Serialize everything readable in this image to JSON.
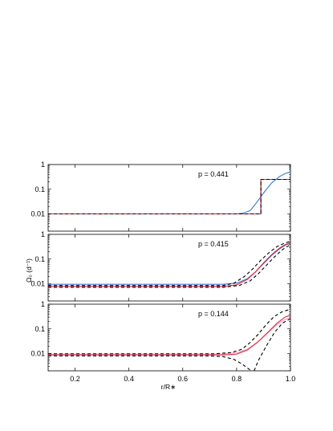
{
  "figure": {
    "xlabel": "r/R∗",
    "ylabel": "Ω₀ (d⁻¹)",
    "x_ticks": [
      "0.2",
      "0.4",
      "0.6",
      "0.8",
      "1.0"
    ],
    "y_ticks": [
      "0.01",
      "0.1",
      "1"
    ]
  },
  "colors": {
    "blue": "#3a78d6",
    "red": "#e0233a",
    "black": "#000000",
    "pink": "#e8a6cf"
  },
  "chart_data": [
    {
      "type": "line",
      "label": "p = 0.441",
      "xlim": [
        0.1,
        1.0
      ],
      "ylim": [
        0.002,
        1
      ],
      "yscale": "log",
      "series": [
        {
          "color": "blue",
          "dash": "solid",
          "points": [
            [
              0.1,
              0.01
            ],
            [
              0.8,
              0.01
            ],
            [
              0.82,
              0.0105
            ],
            [
              0.85,
              0.0135
            ],
            [
              0.87,
              0.025
            ],
            [
              0.9,
              0.07
            ],
            [
              0.93,
              0.18
            ],
            [
              0.96,
              0.33
            ],
            [
              0.98,
              0.43
            ],
            [
              1.0,
              0.5
            ]
          ]
        },
        {
          "color": "black",
          "dash": "solid",
          "points": [
            [
              0.1,
              0.01
            ],
            [
              0.89,
              0.01
            ],
            [
              0.89,
              0.25
            ],
            [
              1.0,
              0.25
            ]
          ]
        },
        {
          "color": "red",
          "dash": "solid",
          "points": [
            [
              0.1,
              0.01
            ],
            [
              0.89,
              0.01
            ],
            [
              0.89,
              0.25
            ],
            [
              1.0,
              0.25
            ]
          ]
        },
        {
          "color": "black",
          "dash": "dashed",
          "points": [
            [
              0.1,
              0.01
            ],
            [
              0.89,
              0.01
            ],
            [
              0.89,
              0.25
            ],
            [
              1.0,
              0.25
            ]
          ]
        }
      ]
    },
    {
      "type": "line",
      "label": "p = 0.415",
      "xlim": [
        0.1,
        1.0
      ],
      "ylim": [
        0.002,
        1
      ],
      "yscale": "log",
      "series": [
        {
          "color": "blue",
          "dash": "solid",
          "points": [
            [
              0.1,
              0.0095
            ],
            [
              0.75,
              0.0095
            ],
            [
              0.8,
              0.0105
            ],
            [
              0.84,
              0.016
            ],
            [
              0.87,
              0.03
            ],
            [
              0.9,
              0.065
            ],
            [
              0.93,
              0.14
            ],
            [
              0.96,
              0.26
            ],
            [
              0.98,
              0.36
            ],
            [
              1.0,
              0.44
            ]
          ]
        },
        {
          "color": "red",
          "dash": "solid",
          "points": [
            [
              0.1,
              0.0078
            ],
            [
              0.75,
              0.0078
            ],
            [
              0.8,
              0.009
            ],
            [
              0.84,
              0.015
            ],
            [
              0.87,
              0.03
            ],
            [
              0.9,
              0.07
            ],
            [
              0.93,
              0.15
            ],
            [
              0.96,
              0.28
            ],
            [
              0.98,
              0.38
            ],
            [
              1.0,
              0.46
            ]
          ]
        },
        {
          "color": "black",
          "dash": "dashed",
          "points": [
            [
              0.1,
              0.0085
            ],
            [
              0.75,
              0.0085
            ],
            [
              0.79,
              0.0105
            ],
            [
              0.83,
              0.02
            ],
            [
              0.86,
              0.04
            ],
            [
              0.89,
              0.09
            ],
            [
              0.92,
              0.18
            ],
            [
              0.95,
              0.32
            ],
            [
              0.98,
              0.45
            ],
            [
              1.0,
              0.52
            ]
          ]
        },
        {
          "color": "black",
          "dash": "dashed",
          "points": [
            [
              0.1,
              0.0072
            ],
            [
              0.75,
              0.0072
            ],
            [
              0.81,
              0.0085
            ],
            [
              0.85,
              0.013
            ],
            [
              0.88,
              0.025
            ],
            [
              0.91,
              0.055
            ],
            [
              0.94,
              0.12
            ],
            [
              0.97,
              0.24
            ],
            [
              0.99,
              0.33
            ],
            [
              1.0,
              0.38
            ]
          ]
        }
      ]
    },
    {
      "type": "line",
      "label": "p = 0.144",
      "xlim": [
        0.1,
        1.0
      ],
      "ylim": [
        0.002,
        1
      ],
      "yscale": "log",
      "series": [
        {
          "color": "pink",
          "dash": "solid",
          "points": [
            [
              0.1,
              0.0095
            ],
            [
              0.75,
              0.0095
            ],
            [
              0.8,
              0.011
            ],
            [
              0.84,
              0.015
            ],
            [
              0.88,
              0.03
            ],
            [
              0.92,
              0.075
            ],
            [
              0.95,
              0.15
            ],
            [
              0.98,
              0.24
            ],
            [
              1.0,
              0.28
            ]
          ]
        },
        {
          "color": "red",
          "dash": "solid",
          "points": [
            [
              0.1,
              0.0088
            ],
            [
              0.75,
              0.0088
            ],
            [
              0.8,
              0.0095
            ],
            [
              0.84,
              0.014
            ],
            [
              0.88,
              0.03
            ],
            [
              0.92,
              0.08
            ],
            [
              0.95,
              0.17
            ],
            [
              0.98,
              0.3
            ],
            [
              1.0,
              0.36
            ]
          ]
        },
        {
          "color": "black",
          "dash": "dashed",
          "points": [
            [
              0.1,
              0.0098
            ],
            [
              0.72,
              0.0098
            ],
            [
              0.78,
              0.011
            ],
            [
              0.82,
              0.015
            ],
            [
              0.85,
              0.028
            ],
            [
              0.88,
              0.06
            ],
            [
              0.91,
              0.15
            ],
            [
              0.94,
              0.32
            ],
            [
              0.97,
              0.5
            ],
            [
              1.0,
              0.62
            ]
          ]
        },
        {
          "color": "black",
          "dash": "dashed",
          "points": [
            [
              0.1,
              0.008
            ],
            [
              0.7,
              0.008
            ],
            [
              0.75,
              0.0075
            ],
            [
              0.79,
              0.0058
            ],
            [
              0.82,
              0.0038
            ],
            [
              0.84,
              0.0026
            ],
            [
              0.855,
              0.002
            ]
          ]
        },
        {
          "color": "black",
          "dash": "dashed",
          "points": [
            [
              0.865,
              0.002
            ],
            [
              0.88,
              0.005
            ],
            [
              0.91,
              0.02
            ],
            [
              0.94,
              0.07
            ],
            [
              0.97,
              0.17
            ],
            [
              1.0,
              0.26
            ]
          ]
        }
      ]
    }
  ]
}
